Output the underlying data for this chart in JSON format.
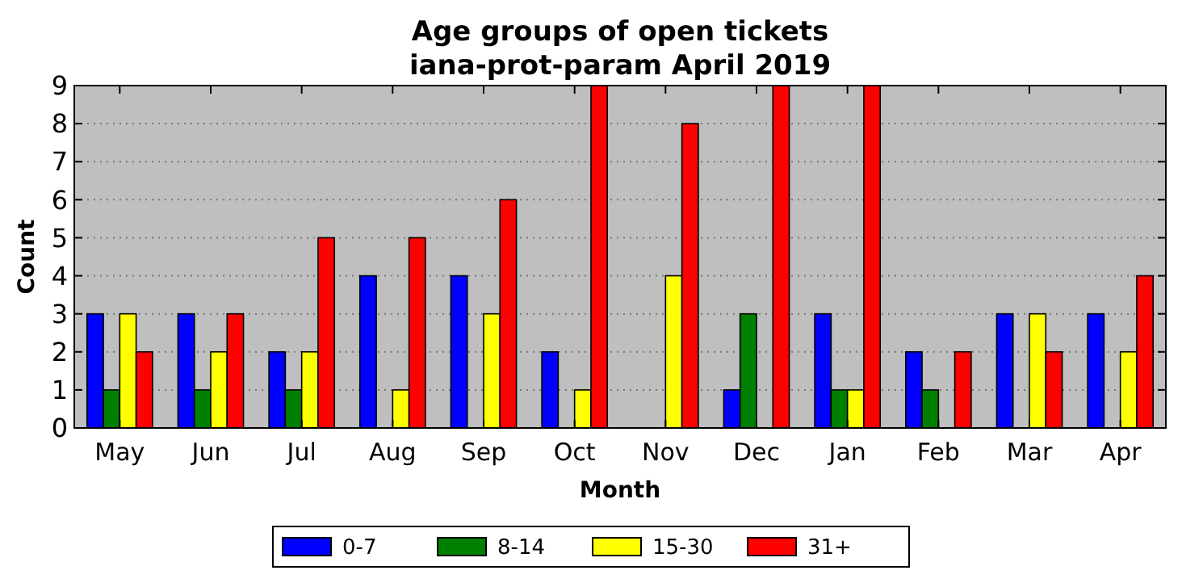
{
  "chart_data": {
    "type": "bar",
    "title": "Age groups of open tickets\niana-prot-param April 2019",
    "xlabel": "Month",
    "ylabel": "Count",
    "categories": [
      "May",
      "Jun",
      "Jul",
      "Aug",
      "Sep",
      "Oct",
      "Nov",
      "Dec",
      "Jan",
      "Feb",
      "Mar",
      "Apr"
    ],
    "series": [
      {
        "name": "0-7",
        "color": "#0000ff",
        "values": [
          3,
          3,
          2,
          4,
          4,
          2,
          0,
          1,
          3,
          2,
          3,
          3
        ]
      },
      {
        "name": "8-14",
        "color": "#008000",
        "values": [
          1,
          1,
          1,
          0,
          0,
          0,
          0,
          3,
          1,
          1,
          0,
          0
        ]
      },
      {
        "name": "15-30",
        "color": "#ffff00",
        "values": [
          3,
          2,
          2,
          1,
          3,
          1,
          4,
          0,
          1,
          0,
          3,
          2
        ]
      },
      {
        "name": "31+",
        "color": "#ff0000",
        "values": [
          2,
          3,
          5,
          5,
          6,
          9,
          8,
          9,
          9,
          2,
          2,
          4
        ]
      }
    ],
    "ylim": [
      0,
      9
    ],
    "yticks": [
      0,
      1,
      2,
      3,
      4,
      5,
      6,
      7,
      8,
      9
    ],
    "grid": "y",
    "legend": "bottom"
  }
}
